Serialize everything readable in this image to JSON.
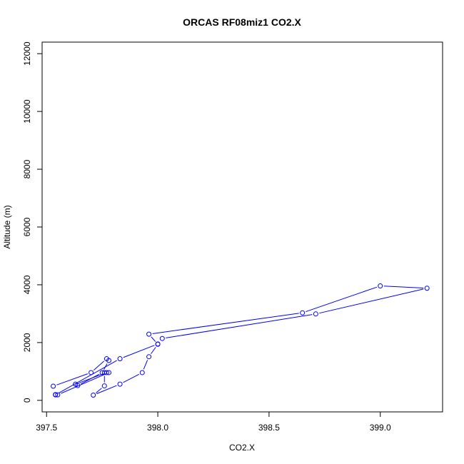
{
  "chart_data": {
    "type": "scatter",
    "title": "ORCAS RF08miz1 CO2.X",
    "xlabel": "CO2.X",
    "ylabel": "Altitude (m)",
    "xlim": [
      397.48,
      399.28
    ],
    "ylim": [
      -400,
      12400
    ],
    "x_ticks": [
      397.5,
      398.0,
      398.5,
      399.0
    ],
    "x_tick_labels": [
      "397.5",
      "398.0",
      "398.5",
      "399.0"
    ],
    "y_ticks": [
      0,
      2000,
      4000,
      6000,
      8000,
      10000,
      12000
    ],
    "y_tick_labels": [
      "0",
      "2000",
      "4000",
      "6000",
      "8000",
      "10000",
      "12000"
    ],
    "grid": false,
    "series": [
      {
        "color": "#0000ff",
        "marker": "open-circle",
        "line": true,
        "points": [
          {
            "x": 397.53,
            "y": 490
          },
          {
            "x": 397.7,
            "y": 960
          },
          {
            "x": 397.77,
            "y": 1440
          },
          {
            "x": 397.78,
            "y": 1380
          },
          {
            "x": 397.75,
            "y": 960
          },
          {
            "x": 397.64,
            "y": 510
          },
          {
            "x": 397.63,
            "y": 560
          },
          {
            "x": 397.77,
            "y": 960
          },
          {
            "x": 397.78,
            "y": 960
          },
          {
            "x": 397.55,
            "y": 190
          },
          {
            "x": 397.54,
            "y": 200
          },
          {
            "x": 397.54,
            "y": 190
          },
          {
            "x": 397.83,
            "y": 1440
          },
          {
            "x": 398.0,
            "y": 1950
          },
          {
            "x": 398.02,
            "y": 2140
          },
          {
            "x": 398.71,
            "y": 2990
          },
          {
            "x": 399.21,
            "y": 3880
          },
          {
            "x": 399.0,
            "y": 3960
          },
          {
            "x": 398.65,
            "y": 3030
          },
          {
            "x": 397.96,
            "y": 2290
          },
          {
            "x": 398.0,
            "y": 1940
          },
          {
            "x": 397.96,
            "y": 1510
          },
          {
            "x": 397.93,
            "y": 960
          },
          {
            "x": 397.83,
            "y": 560
          },
          {
            "x": 397.71,
            "y": 180
          },
          {
            "x": 397.76,
            "y": 500
          },
          {
            "x": 397.76,
            "y": 960
          }
        ]
      }
    ]
  }
}
